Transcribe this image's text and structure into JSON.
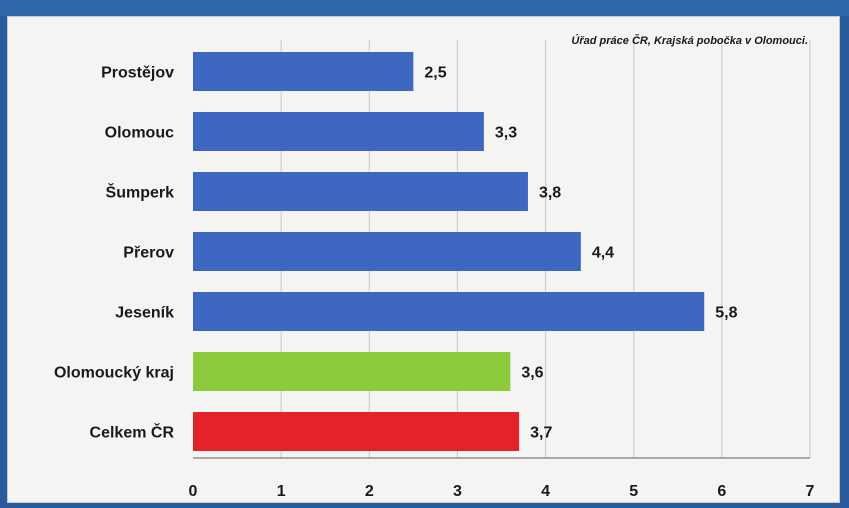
{
  "source_note": "Úřad práce ČR, Krajská pobočka v Olomouci.",
  "chart_data": {
    "type": "bar",
    "orientation": "horizontal",
    "categories": [
      "Prostějov",
      "Olomouc",
      "Šumperk",
      "Přerov",
      "Jeseník",
      "Olomoucký kraj",
      "Celkem ČR"
    ],
    "values": [
      2.5,
      3.3,
      3.8,
      4.4,
      5.8,
      3.6,
      3.7
    ],
    "value_labels": [
      "2,5",
      "3,3",
      "3,8",
      "4,4",
      "5,8",
      "3,6",
      "3,7"
    ],
    "bar_colors": [
      "#3d67c1",
      "#3d67c1",
      "#3d67c1",
      "#3d67c1",
      "#3d67c1",
      "#8ccb3c",
      "#e4222a"
    ],
    "xlim": [
      0,
      7
    ],
    "xticks": [
      0,
      1,
      2,
      3,
      4,
      5,
      6,
      7
    ],
    "xtick_labels": [
      "0",
      "1",
      "2",
      "3",
      "4",
      "5",
      "6",
      "7"
    ],
    "grid": "vertical",
    "title": "",
    "xlabel": "",
    "ylabel": ""
  }
}
